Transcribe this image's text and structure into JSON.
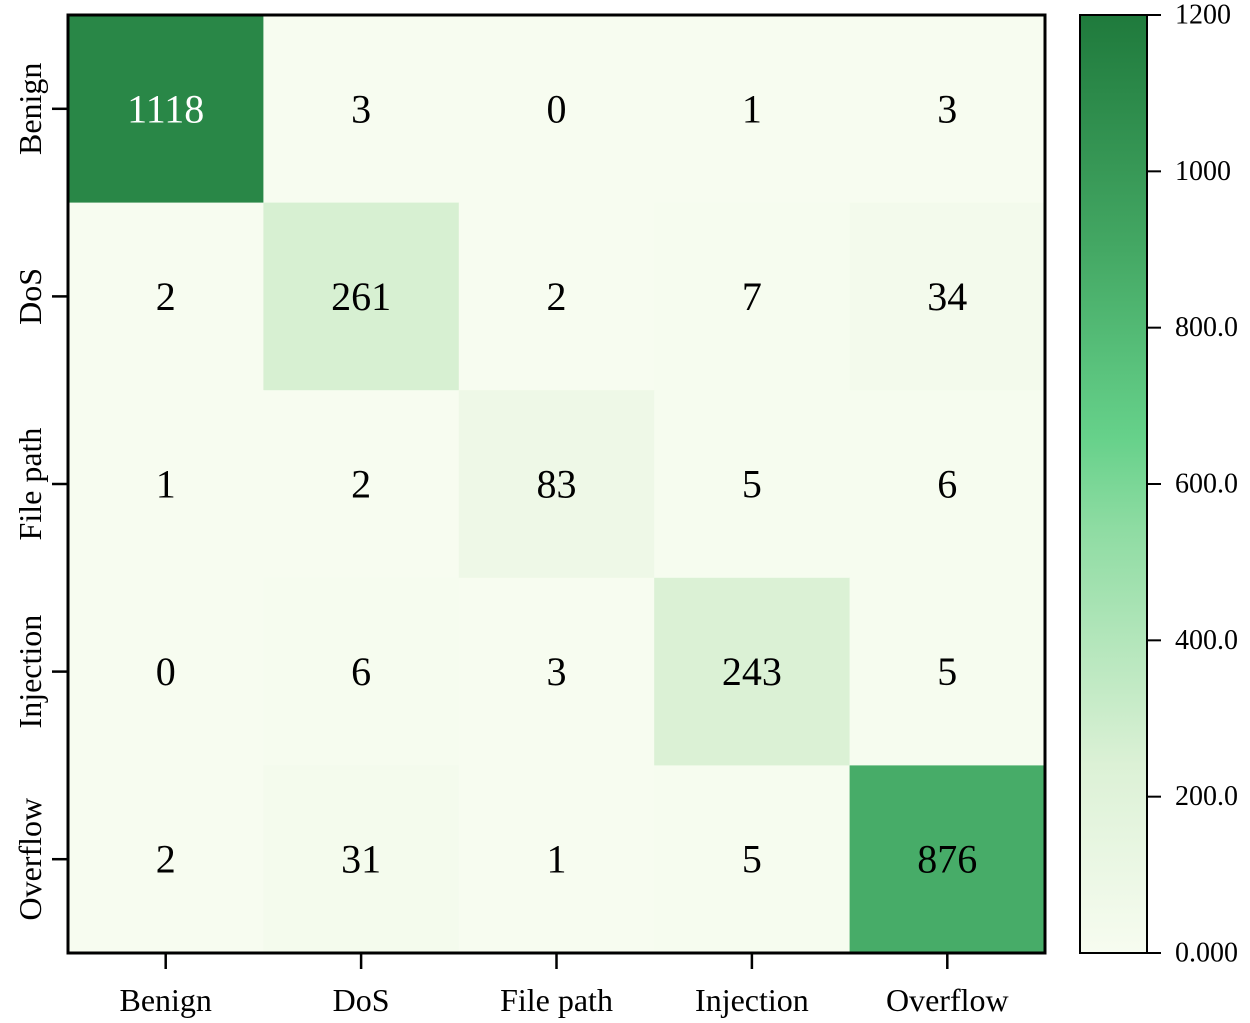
{
  "chart_data": {
    "type": "heatmap",
    "title": "",
    "xlabel": "",
    "ylabel": "",
    "x_categories": [
      "Benign",
      "DoS",
      "File path",
      "Injection",
      "Overflow"
    ],
    "y_categories": [
      "Benign",
      "DoS",
      "File path",
      "Injection",
      "Overflow"
    ],
    "values": [
      [
        1118,
        3,
        0,
        1,
        3
      ],
      [
        2,
        261,
        2,
        7,
        34
      ],
      [
        1,
        2,
        83,
        5,
        6
      ],
      [
        0,
        6,
        3,
        243,
        5
      ],
      [
        2,
        31,
        1,
        5,
        876
      ]
    ],
    "colorbar": {
      "min": 0,
      "max": 1200,
      "ticks": [
        0,
        200,
        400,
        600,
        800,
        1000,
        1200
      ],
      "tick_labels": [
        "0.000",
        "200.0",
        "400.0",
        "600.0",
        "800.0",
        "1000",
        "1200"
      ],
      "colormap": "Greens",
      "colors": {
        "low": "#f7fcf0",
        "mid": "#66d18a",
        "high": "#1f7a3c"
      }
    },
    "grid": false
  }
}
